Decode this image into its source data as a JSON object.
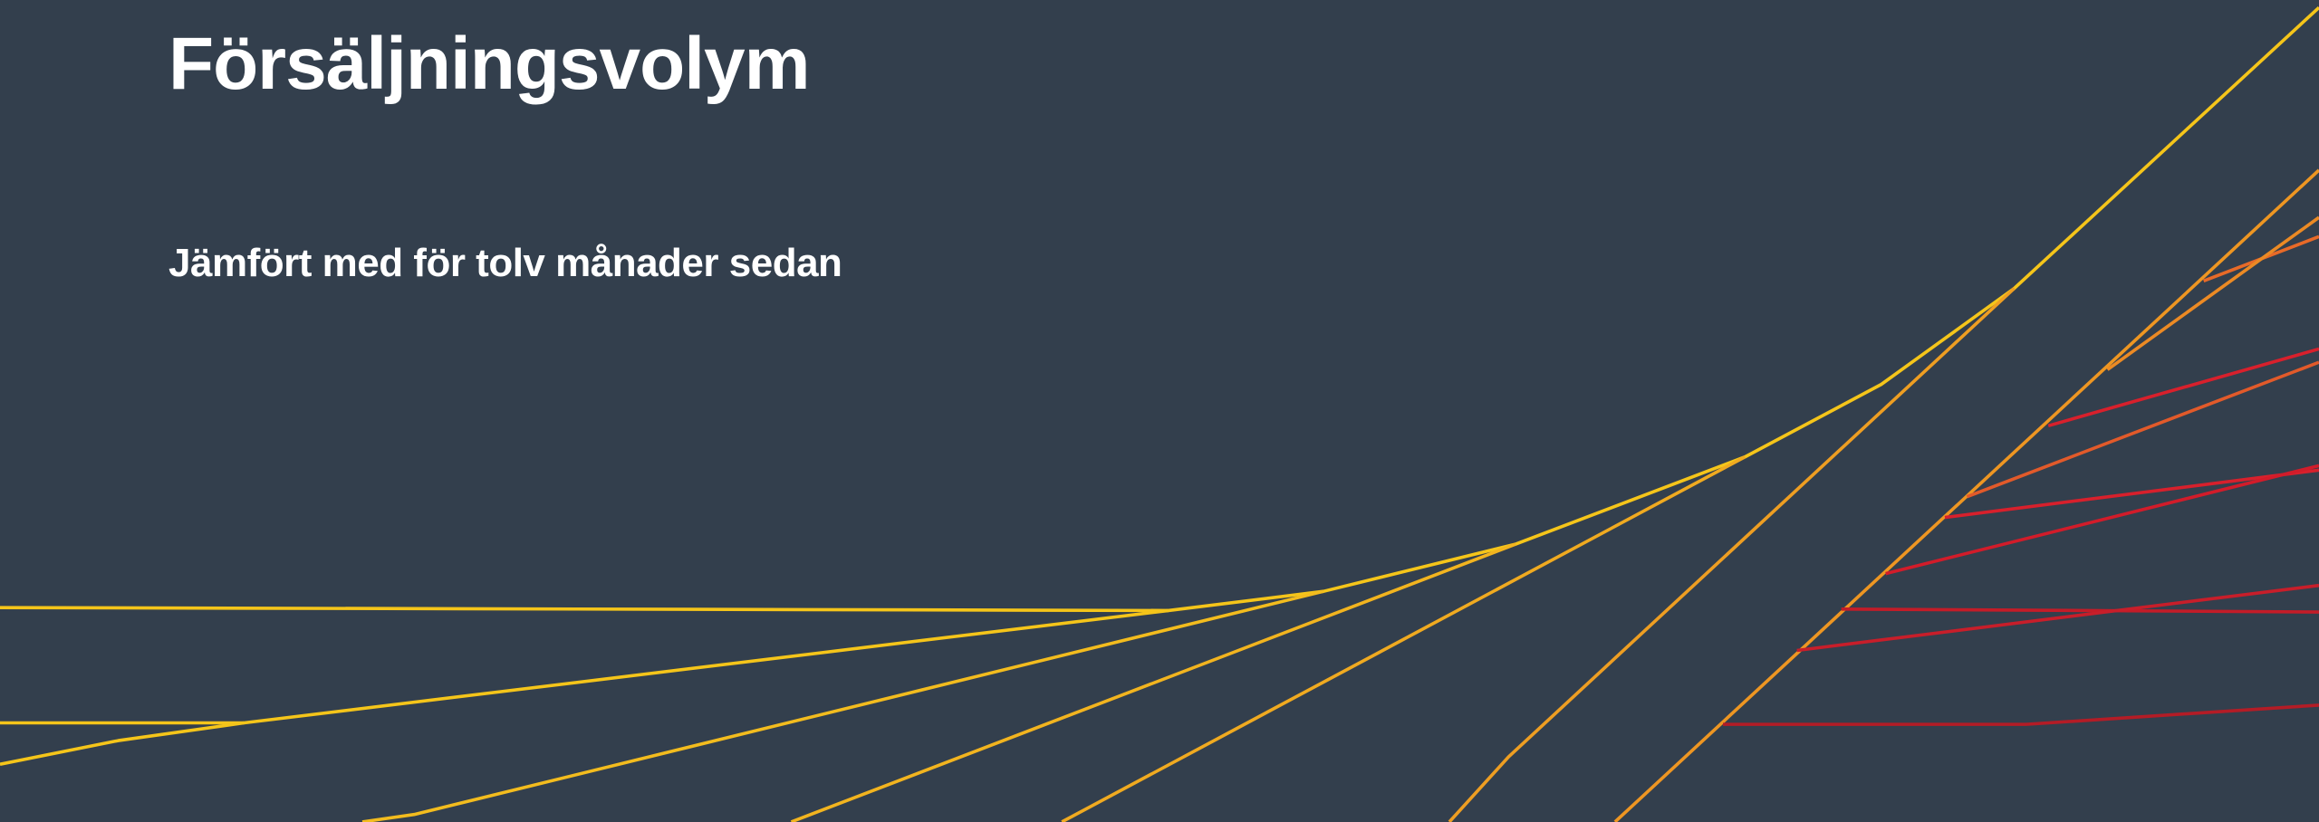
{
  "header": {
    "title": "Försäljningsvolym",
    "subtitle": "Jämfört med för tolv månader sedan"
  }
}
